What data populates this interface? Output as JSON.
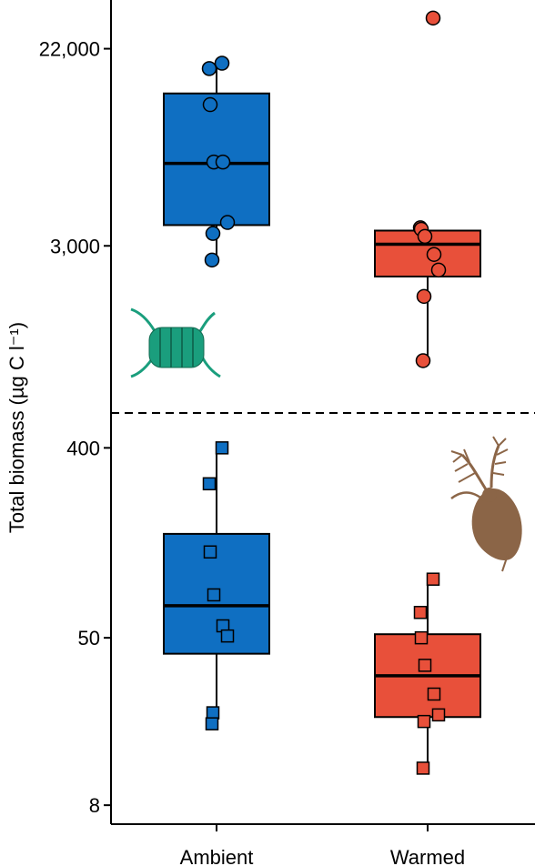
{
  "chart_data": {
    "type": "box",
    "ylabel": "Total biomass (µg C l⁻¹)",
    "categories": [
      "Ambient",
      "Warmed"
    ],
    "y_scale": "log",
    "colors": {
      "Ambient": "#0f6fc2",
      "Warmed": "#e8503a"
    },
    "upper_panel": {
      "yticks": [
        3000,
        22000
      ],
      "ytick_labels": [
        "3,000",
        "22,000"
      ],
      "ylim": [
        630,
        36000
      ],
      "series": [
        {
          "group": "Ambient",
          "marker": "circle",
          "box": {
            "q1": 3700,
            "median": 6900,
            "q3": 14000,
            "whisker_low": 2600,
            "whisker_high": 19000
          },
          "points": [
            19000,
            18000,
            12500,
            7000,
            7000,
            3800,
            3400,
            2600
          ]
        },
        {
          "group": "Warmed",
          "marker": "circle",
          "box": {
            "q1": 2200,
            "median": 3050,
            "q3": 3500,
            "whisker_low": 940,
            "whisker_high": 3500
          },
          "points": [
            30000,
            3600,
            3550,
            3300,
            2750,
            2350,
            1800,
            940
          ]
        }
      ]
    },
    "lower_panel": {
      "yticks": [
        8,
        50,
        400
      ],
      "ytick_labels": [
        "8",
        "50",
        "400"
      ],
      "ylim": [
        6.5,
        520
      ],
      "series": [
        {
          "group": "Ambient",
          "marker": "square",
          "box": {
            "q1": 42,
            "median": 71,
            "q3": 156,
            "whisker_low": 19.5,
            "whisker_high": 400
          },
          "points": [
            400,
            270,
            128,
            80,
            57,
            51,
            22,
            19.5
          ]
        },
        {
          "group": "Warmed",
          "marker": "square",
          "box": {
            "q1": 21,
            "median": 33,
            "q3": 52,
            "whisker_low": 12,
            "whisker_high": 95
          },
          "points": [
            95,
            66,
            50,
            37,
            27,
            21.5,
            20,
            12
          ]
        }
      ]
    },
    "icons": [
      "diatom-chain-icon",
      "copepod-icon"
    ]
  }
}
